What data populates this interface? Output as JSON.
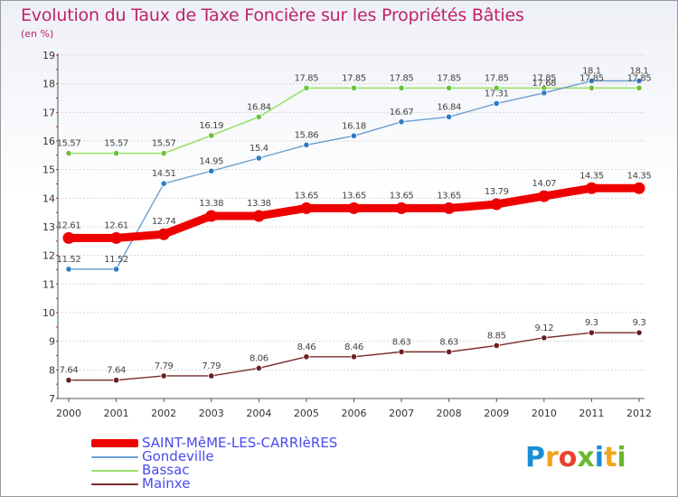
{
  "title": "Evolution du Taux de Taxe Foncière sur les Propriétés Bâties",
  "unit": "(en %)",
  "logo": {
    "letters": [
      "P",
      "r",
      "o",
      "x",
      "i",
      "t",
      "i"
    ],
    "colors": [
      "#1a8fd6",
      "#f2a51c",
      "#e8422c",
      "#6ab82e",
      "#1a8fd6",
      "#f2a51c",
      "#6ab82e"
    ]
  },
  "chart_data": {
    "type": "line",
    "title": "Evolution du Taux de Taxe Foncière sur les Propriétés Bâties",
    "ylabel": "(en %)",
    "xlabel": "",
    "ylim": [
      7,
      19
    ],
    "yticks": [
      7,
      8,
      9,
      10,
      11,
      12,
      13,
      14,
      15,
      16,
      17,
      18,
      19
    ],
    "grid": "horizontal",
    "legend_position": "bottom-left",
    "categories": [
      "2000",
      "2001",
      "2002",
      "2003",
      "2004",
      "2005",
      "2006",
      "2007",
      "2008",
      "2009",
      "2010",
      "2011",
      "2012"
    ],
    "series": [
      {
        "name": "SAINT-MêME-LES-CARRIèRES",
        "color": "#ee0000",
        "width": 9,
        "marker": "#ee0000",
        "values": [
          12.61,
          12.61,
          12.74,
          13.38,
          13.38,
          13.65,
          13.65,
          13.65,
          13.65,
          13.79,
          14.07,
          14.35,
          14.35
        ],
        "labels": [
          "12.61",
          "12.61",
          "12.74",
          "13.38",
          "13.38",
          "13.65",
          "13.65",
          "13.65",
          "13.65",
          "13.79",
          "14.07",
          "14.35",
          "14.35"
        ]
      },
      {
        "name": "Gondeville",
        "color": "#6a9fd0",
        "width": 1.4,
        "marker": "#2e7cc4",
        "values": [
          11.52,
          11.52,
          14.51,
          14.95,
          15.4,
          15.86,
          16.18,
          16.67,
          16.84,
          17.31,
          17.68,
          18.1,
          18.1
        ],
        "labels": [
          "11.52",
          "11.52",
          "14.51",
          "14.95",
          "15.4",
          "15.86",
          "16.18",
          "16.67",
          "16.84",
          "17.31",
          "17.68",
          "18.1",
          "18.1"
        ]
      },
      {
        "name": "Bassac",
        "color": "#9be06a",
        "width": 1.6,
        "marker": "#6cc23a",
        "values": [
          15.57,
          15.57,
          15.57,
          16.19,
          16.84,
          17.85,
          17.85,
          17.85,
          17.85,
          17.85,
          17.85,
          17.85,
          17.85
        ],
        "labels": [
          "15.57",
          "15.57",
          "15.57",
          "16.19",
          "16.84",
          "17.85",
          "17.85",
          "17.85",
          "17.85",
          "17.85",
          "17.85",
          "17.85",
          "17.85"
        ]
      },
      {
        "name": "Mainxe",
        "color": "#7a2a2a",
        "width": 1.4,
        "marker": "#6a1f1f",
        "values": [
          7.64,
          7.64,
          7.79,
          7.79,
          8.06,
          8.46,
          8.46,
          8.63,
          8.63,
          8.85,
          9.12,
          9.3,
          9.3
        ],
        "labels": [
          "7.64",
          "7.64",
          "7.79",
          "7.79",
          "8.06",
          "8.46",
          "8.46",
          "8.63",
          "8.63",
          "8.85",
          "9.12",
          "9.3",
          "9.3"
        ]
      }
    ]
  }
}
